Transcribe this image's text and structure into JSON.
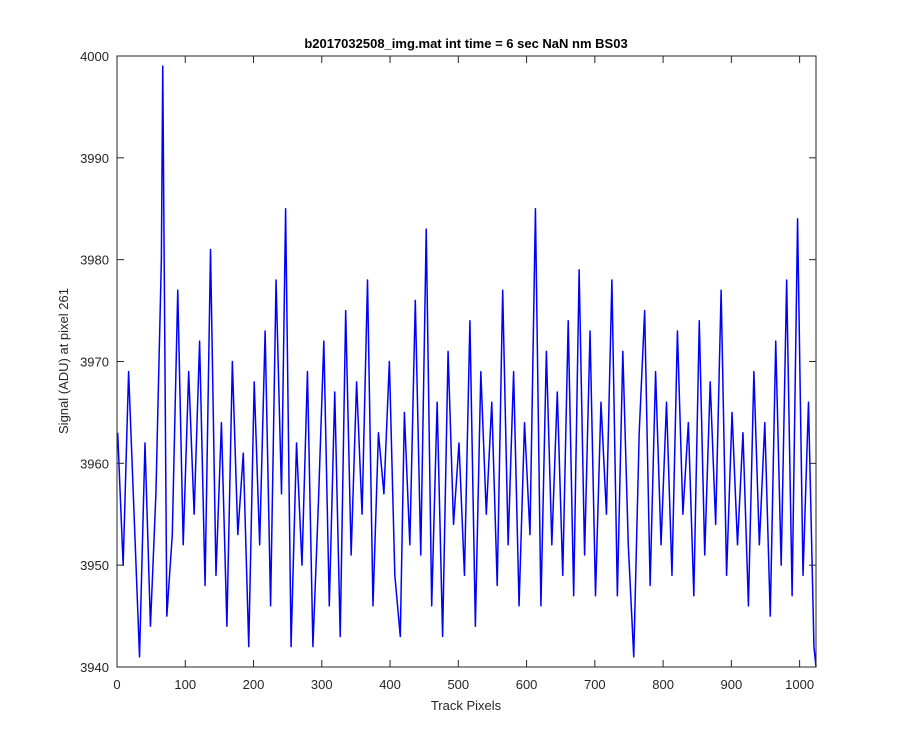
{
  "chart_data": {
    "type": "line",
    "title": "b2017032508_img.mat int time = 6 sec  NaN nm BS03",
    "xlabel": "Track Pixels",
    "ylabel": "Signal (ADU) at pixel 261",
    "xlim": [
      0,
      1024
    ],
    "ylim": [
      3940,
      4000
    ],
    "xticks": [
      0,
      100,
      200,
      300,
      400,
      500,
      600,
      700,
      800,
      900,
      1000
    ],
    "yticks": [
      3940,
      3950,
      3960,
      3970,
      3980,
      3990,
      4000
    ],
    "grid": false,
    "line_color": "#0000ff",
    "series": [
      {
        "x": [
          1,
          9,
          17,
          25,
          33,
          41,
          49,
          57,
          65,
          67,
          73,
          81,
          89,
          97,
          105,
          113,
          121,
          129,
          137,
          145,
          153,
          161,
          169,
          177,
          185,
          193,
          201,
          209,
          217,
          225,
          233,
          241,
          247,
          255,
          263,
          271,
          279,
          287,
          295,
          303,
          311,
          319,
          327,
          335,
          343,
          351,
          359,
          367,
          375,
          383,
          391,
          399,
          407,
          415,
          421,
          429,
          437,
          445,
          453,
          461,
          469,
          477,
          485,
          493,
          501,
          509,
          517,
          525,
          533,
          541,
          549,
          557,
          565,
          573,
          581,
          589,
          597,
          605,
          613,
          621,
          629,
          637,
          645,
          653,
          661,
          669,
          677,
          685,
          693,
          701,
          709,
          717,
          725,
          733,
          741,
          749,
          757,
          765,
          773,
          781,
          789,
          797,
          805,
          813,
          821,
          829,
          837,
          845,
          853,
          861,
          869,
          877,
          885,
          893,
          901,
          909,
          917,
          925,
          933,
          941,
          949,
          957,
          965,
          973,
          981,
          989,
          997,
          1005,
          1013,
          1021,
          1024
        ],
        "values": [
          3963,
          3950,
          3969,
          3955,
          3941,
          3962,
          3944,
          3957,
          3980,
          3999,
          3945,
          3953,
          3977,
          3952,
          3969,
          3955,
          3972,
          3948,
          3981,
          3949,
          3964,
          3944,
          3970,
          3953,
          3961,
          3942,
          3968,
          3952,
          3973,
          3946,
          3978,
          3957,
          3985,
          3942,
          3962,
          3950,
          3969,
          3942,
          3956,
          3972,
          3946,
          3967,
          3943,
          3975,
          3951,
          3968,
          3955,
          3978,
          3946,
          3963,
          3957,
          3970,
          3949,
          3943,
          3965,
          3952,
          3976,
          3951,
          3983,
          3946,
          3966,
          3943,
          3971,
          3954,
          3962,
          3949,
          3974,
          3944,
          3969,
          3955,
          3966,
          3948,
          3977,
          3952,
          3969,
          3946,
          3964,
          3953,
          3985,
          3946,
          3971,
          3952,
          3967,
          3949,
          3974,
          3947,
          3979,
          3951,
          3973,
          3947,
          3966,
          3955,
          3978,
          3947,
          3971,
          3952,
          3941,
          3963,
          3975,
          3948,
          3969,
          3952,
          3966,
          3949,
          3973,
          3955,
          3964,
          3947,
          3974,
          3951,
          3968,
          3954,
          3977,
          3949,
          3965,
          3952,
          3963,
          3946,
          3969,
          3952,
          3964,
          3945,
          3972,
          3950,
          3978,
          3947,
          3984,
          3949,
          3966,
          3942,
          3940
        ]
      }
    ]
  }
}
